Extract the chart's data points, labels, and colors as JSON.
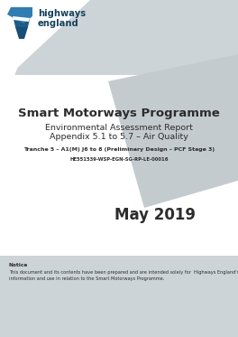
{
  "bg_color": "#ffffff",
  "gray_light": "#cdd4d7",
  "gray_mid": "#c4cbce",
  "gray_dark": "#b8c1c5",
  "title_main": "Smart Motorways Programme",
  "title_sub1": "Environmental Assessment Report",
  "title_sub2": "Appendix 5.1 to 5.7 – Air Quality",
  "tranche_line": "Tranche 5 – A1(M) J6 to 8 (Preliminary Design – PCF Stage 3)",
  "ref_line": "HE551539-WSP-EGN-SG-RP-LE-00016",
  "date_text": "May 2019",
  "notice_title": "Notice",
  "notice_body1": "This document and its contents have been prepared and are intended solely for  Highways England's",
  "notice_body2": "information and use in relation to the Smart Motorways Programme.",
  "logo_text_highways": "highways",
  "logo_text_england": "england",
  "text_color": "#2c2c2c"
}
